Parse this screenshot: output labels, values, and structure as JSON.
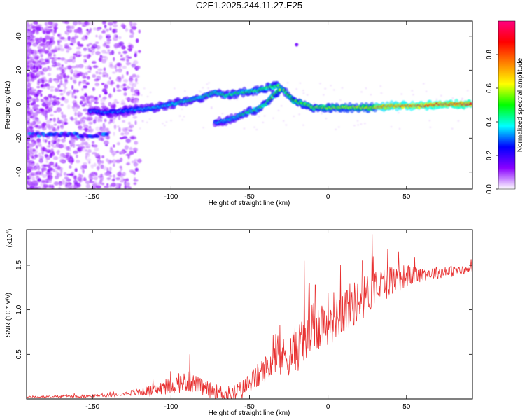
{
  "chart_data": [
    {
      "type": "heatmap",
      "title": "C2E1.2025.244.11.27.E25",
      "xlabel": "Height of straight line (km)",
      "ylabel": "Frequency (Hz)",
      "xlim": [
        -192,
        92
      ],
      "ylim": [
        -50,
        49
      ],
      "xticks": [
        -150,
        -100,
        -50,
        0,
        50
      ],
      "yticks": [
        -40,
        -20,
        0,
        20,
        40
      ],
      "colorbar": {
        "label": "Normalized spectral amplitude",
        "range": [
          0,
          1
        ],
        "ticks": [
          0.0,
          0.2,
          0.4,
          0.6,
          0.8
        ],
        "tick_labels": [
          "0.0",
          "0.2",
          "0.4",
          "0.6",
          "0.8"
        ],
        "colors": [
          "#ffffff",
          "#8a00ff",
          "#0000ff",
          "#00ffff",
          "#00ff00",
          "#ffff00",
          "#ff8000",
          "#ff0000",
          "#ff0080"
        ]
      },
      "main_ridge": [
        [
          -150,
          -4
        ],
        [
          -140,
          -5
        ],
        [
          -130,
          -4
        ],
        [
          -120,
          -3
        ],
        [
          -110,
          -2
        ],
        [
          -100,
          0
        ],
        [
          -90,
          2
        ],
        [
          -80,
          4
        ],
        [
          -72,
          7
        ],
        [
          -65,
          5
        ],
        [
          -55,
          7
        ],
        [
          -45,
          8
        ],
        [
          -38,
          10
        ],
        [
          -32,
          11
        ],
        [
          -28,
          8
        ],
        [
          -22,
          2
        ],
        [
          -15,
          0
        ],
        [
          -10,
          -2
        ],
        [
          0,
          -2
        ],
        [
          10,
          -2
        ],
        [
          20,
          -2
        ],
        [
          30,
          -2
        ],
        [
          40,
          -1
        ],
        [
          50,
          -1
        ],
        [
          60,
          -1
        ],
        [
          70,
          0
        ],
        [
          80,
          0
        ],
        [
          90,
          0
        ]
      ],
      "secondary_ridge": [
        [
          -72,
          -11
        ],
        [
          -62,
          -9
        ],
        [
          -52,
          -5
        ],
        [
          -45,
          -3
        ],
        [
          -40,
          0
        ],
        [
          -35,
          5
        ],
        [
          -30,
          9
        ]
      ],
      "low_branch": [
        [
          -185,
          -18
        ],
        [
          -170,
          -18
        ],
        [
          -160,
          -18
        ],
        [
          -152,
          -19
        ],
        [
          -145,
          -18
        ]
      ],
      "isolated_points": [
        [
          -20,
          35
        ]
      ]
    },
    {
      "type": "line",
      "xlabel": "Height of straight line (km)",
      "ylabel": "SNR (10 * v/v)",
      "scale_label": "(x10",
      "scale_exponent": "4",
      "xlim": [
        -192,
        92
      ],
      "ylim": [
        0,
        1.9
      ],
      "xticks": [
        -150,
        -100,
        -50,
        0,
        50
      ],
      "yticks": [
        0.5,
        1.0,
        1.5
      ],
      "ytick_labels": [
        "0.5",
        "1.0",
        "1.5"
      ],
      "color": "#e83030",
      "trend": [
        [
          -192,
          0.02
        ],
        [
          -160,
          0.03
        ],
        [
          -140,
          0.04
        ],
        [
          -125,
          0.07
        ],
        [
          -110,
          0.1
        ],
        [
          -100,
          0.15
        ],
        [
          -90,
          0.2
        ],
        [
          -85,
          0.17
        ],
        [
          -80,
          0.12
        ],
        [
          -70,
          0.08
        ],
        [
          -62,
          0.05
        ],
        [
          -55,
          0.1
        ],
        [
          -45,
          0.25
        ],
        [
          -35,
          0.4
        ],
        [
          -25,
          0.5
        ],
        [
          -15,
          0.65
        ],
        [
          -8,
          0.8
        ],
        [
          0,
          0.9
        ],
        [
          10,
          1.0
        ],
        [
          20,
          1.1
        ],
        [
          30,
          1.25
        ],
        [
          40,
          1.33
        ],
        [
          50,
          1.38
        ],
        [
          60,
          1.4
        ],
        [
          70,
          1.42
        ],
        [
          80,
          1.43
        ],
        [
          92,
          1.45
        ]
      ],
      "noise": [
        [
          -192,
          0.01
        ],
        [
          -130,
          0.02
        ],
        [
          -110,
          0.07
        ],
        [
          -90,
          0.12
        ],
        [
          -70,
          0.08
        ],
        [
          -50,
          0.12
        ],
        [
          -30,
          0.22
        ],
        [
          -15,
          0.3
        ],
        [
          0,
          0.3
        ],
        [
          20,
          0.25
        ],
        [
          40,
          0.18
        ],
        [
          60,
          0.08
        ],
        [
          92,
          0.05
        ]
      ],
      "spikes": [
        [
          -88,
          0.5
        ],
        [
          -35,
          0.72
        ],
        [
          -30,
          0.52
        ],
        [
          -24,
          0.5
        ],
        [
          -17,
          0.72
        ],
        [
          -15,
          1.55
        ],
        [
          -12,
          1.3
        ],
        [
          -8,
          1.28
        ],
        [
          -3,
          1.0
        ],
        [
          8,
          1.5
        ],
        [
          22,
          1.55
        ],
        [
          28,
          1.85
        ],
        [
          38,
          1.68
        ],
        [
          45,
          1.65
        ]
      ]
    }
  ]
}
